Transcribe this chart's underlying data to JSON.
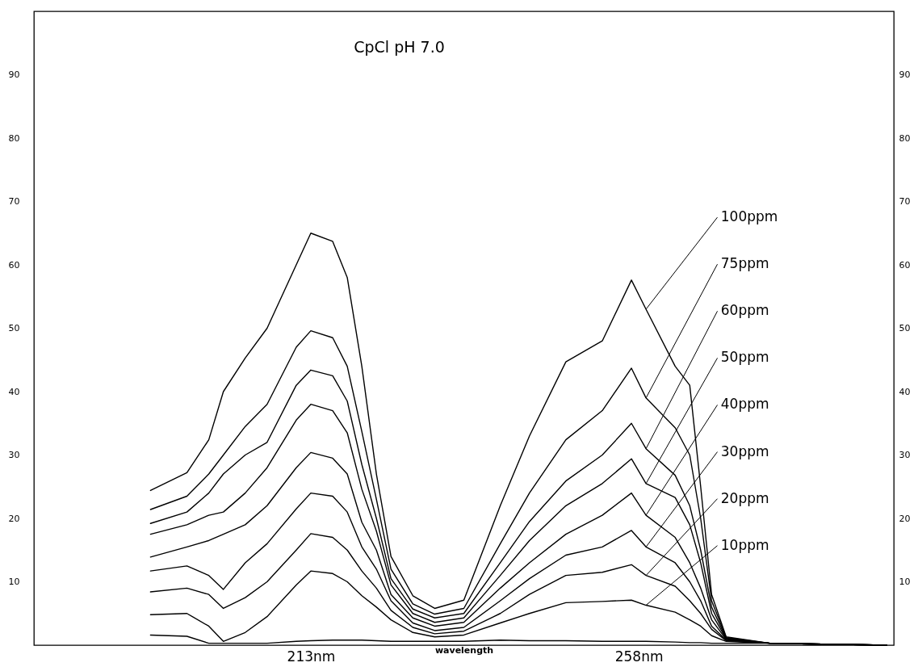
{
  "chart_data": {
    "type": "line",
    "title": "CpCl  pH 7.0",
    "xlabel": "wavelength",
    "x": [
      191,
      196,
      199,
      201,
      204,
      207,
      211,
      213,
      216,
      218,
      220,
      222,
      224,
      227,
      230,
      234,
      239,
      243,
      248,
      253,
      257,
      259,
      263,
      265,
      266.5,
      268,
      270,
      276,
      292
    ],
    "xlim": [
      175,
      293
    ],
    "xticks": [
      {
        "value": 213,
        "label": "213nm"
      },
      {
        "value": 258,
        "label": "258nm"
      }
    ],
    "ylim": [
      0,
      100
    ],
    "yticks": [
      10,
      20,
      30,
      40,
      50,
      60,
      70,
      80,
      90
    ],
    "y2lim": [
      0,
      100
    ],
    "y2ticks": [
      10,
      20,
      30,
      40,
      50,
      60,
      70,
      80,
      90
    ],
    "grid": false,
    "legend": false,
    "series": [
      {
        "name": "100ppm",
        "color": "#000000",
        "values": [
          24.4,
          27.2,
          32.4,
          40,
          45.3,
          50,
          60,
          65,
          63.7,
          58,
          44,
          27,
          14,
          7.8,
          5.8,
          7.1,
          22,
          33,
          44.7,
          48,
          57.6,
          53,
          44,
          41,
          25,
          8,
          1.3,
          0.3,
          0
        ]
      },
      {
        "name": "75ppm",
        "color": "#000000",
        "values": [
          21.4,
          23.5,
          27,
          30,
          34.5,
          38,
          47,
          49.6,
          48.5,
          44,
          33.7,
          23,
          12,
          6.5,
          4.9,
          5.8,
          16,
          24,
          32.4,
          37,
          43.7,
          39,
          34.3,
          30,
          20,
          7,
          1.2,
          0.3,
          0
        ]
      },
      {
        "name": "60ppm",
        "color": "#000000",
        "values": [
          19.2,
          21,
          24,
          27,
          30,
          32,
          41,
          43.4,
          42.5,
          38.5,
          28.5,
          20,
          10.5,
          5.7,
          4.3,
          5,
          13,
          19.5,
          25.9,
          30,
          35,
          31,
          26.8,
          22,
          15,
          6,
          1.1,
          0.3,
          0
        ]
      },
      {
        "name": "50ppm",
        "color": "#000000",
        "values": [
          17.5,
          19,
          20.5,
          21,
          24,
          28,
          35.5,
          38,
          37,
          33.5,
          24.6,
          18,
          9.5,
          5,
          3.6,
          4.3,
          11,
          16.5,
          22,
          25.5,
          29.4,
          25.5,
          23.3,
          19,
          13,
          5,
          1,
          0.3,
          0
        ]
      },
      {
        "name": "40ppm",
        "color": "#000000",
        "values": [
          13.9,
          15.5,
          16.5,
          17.5,
          19,
          22,
          28,
          30.4,
          29.5,
          27,
          19.4,
          15,
          8,
          4.3,
          3,
          3.6,
          9,
          13,
          17.5,
          20.5,
          24,
          20.5,
          17,
          13,
          9,
          4,
          0.9,
          0.3,
          0
        ]
      },
      {
        "name": "30ppm",
        "color": "#000000",
        "values": [
          11.7,
          12.5,
          11,
          8.8,
          13,
          16,
          21.5,
          24,
          23.5,
          21,
          15.5,
          12,
          7,
          3.5,
          2.3,
          2.8,
          7,
          10.5,
          14.2,
          15.5,
          18.1,
          15.5,
          13,
          10,
          7,
          3,
          0.8,
          0.3,
          0
        ]
      },
      {
        "name": "20ppm",
        "color": "#000000",
        "values": [
          8.4,
          9,
          8,
          5.8,
          7.5,
          10,
          15,
          17.6,
          17,
          15,
          11.7,
          9,
          5.5,
          2.8,
          1.8,
          2.2,
          5,
          8,
          11,
          11.5,
          12.7,
          11,
          9.3,
          7,
          5,
          2.5,
          0.7,
          0.3,
          0
        ]
      },
      {
        "name": "10ppm",
        "color": "#000000",
        "values": [
          4.8,
          5,
          3,
          0.6,
          2,
          4.5,
          9.5,
          11.7,
          11.3,
          10,
          7.8,
          6,
          4,
          2,
          1.3,
          1.6,
          3.5,
          5,
          6.7,
          6.9,
          7.1,
          6.3,
          5.2,
          4,
          3,
          1.5,
          0.6,
          0.3,
          0
        ]
      },
      {
        "color": "#000000",
        "values": [
          1.6,
          1.4,
          0.3,
          0.3,
          0.3,
          0.3,
          0.6,
          0.7,
          0.8,
          0.8,
          0.8,
          0.7,
          0.6,
          0.6,
          0.6,
          0.6,
          0.8,
          0.7,
          0.7,
          0.6,
          0.6,
          0.6,
          0.5,
          0.4,
          0.4,
          0.3,
          0.3,
          0.3,
          0
        ]
      }
    ]
  }
}
